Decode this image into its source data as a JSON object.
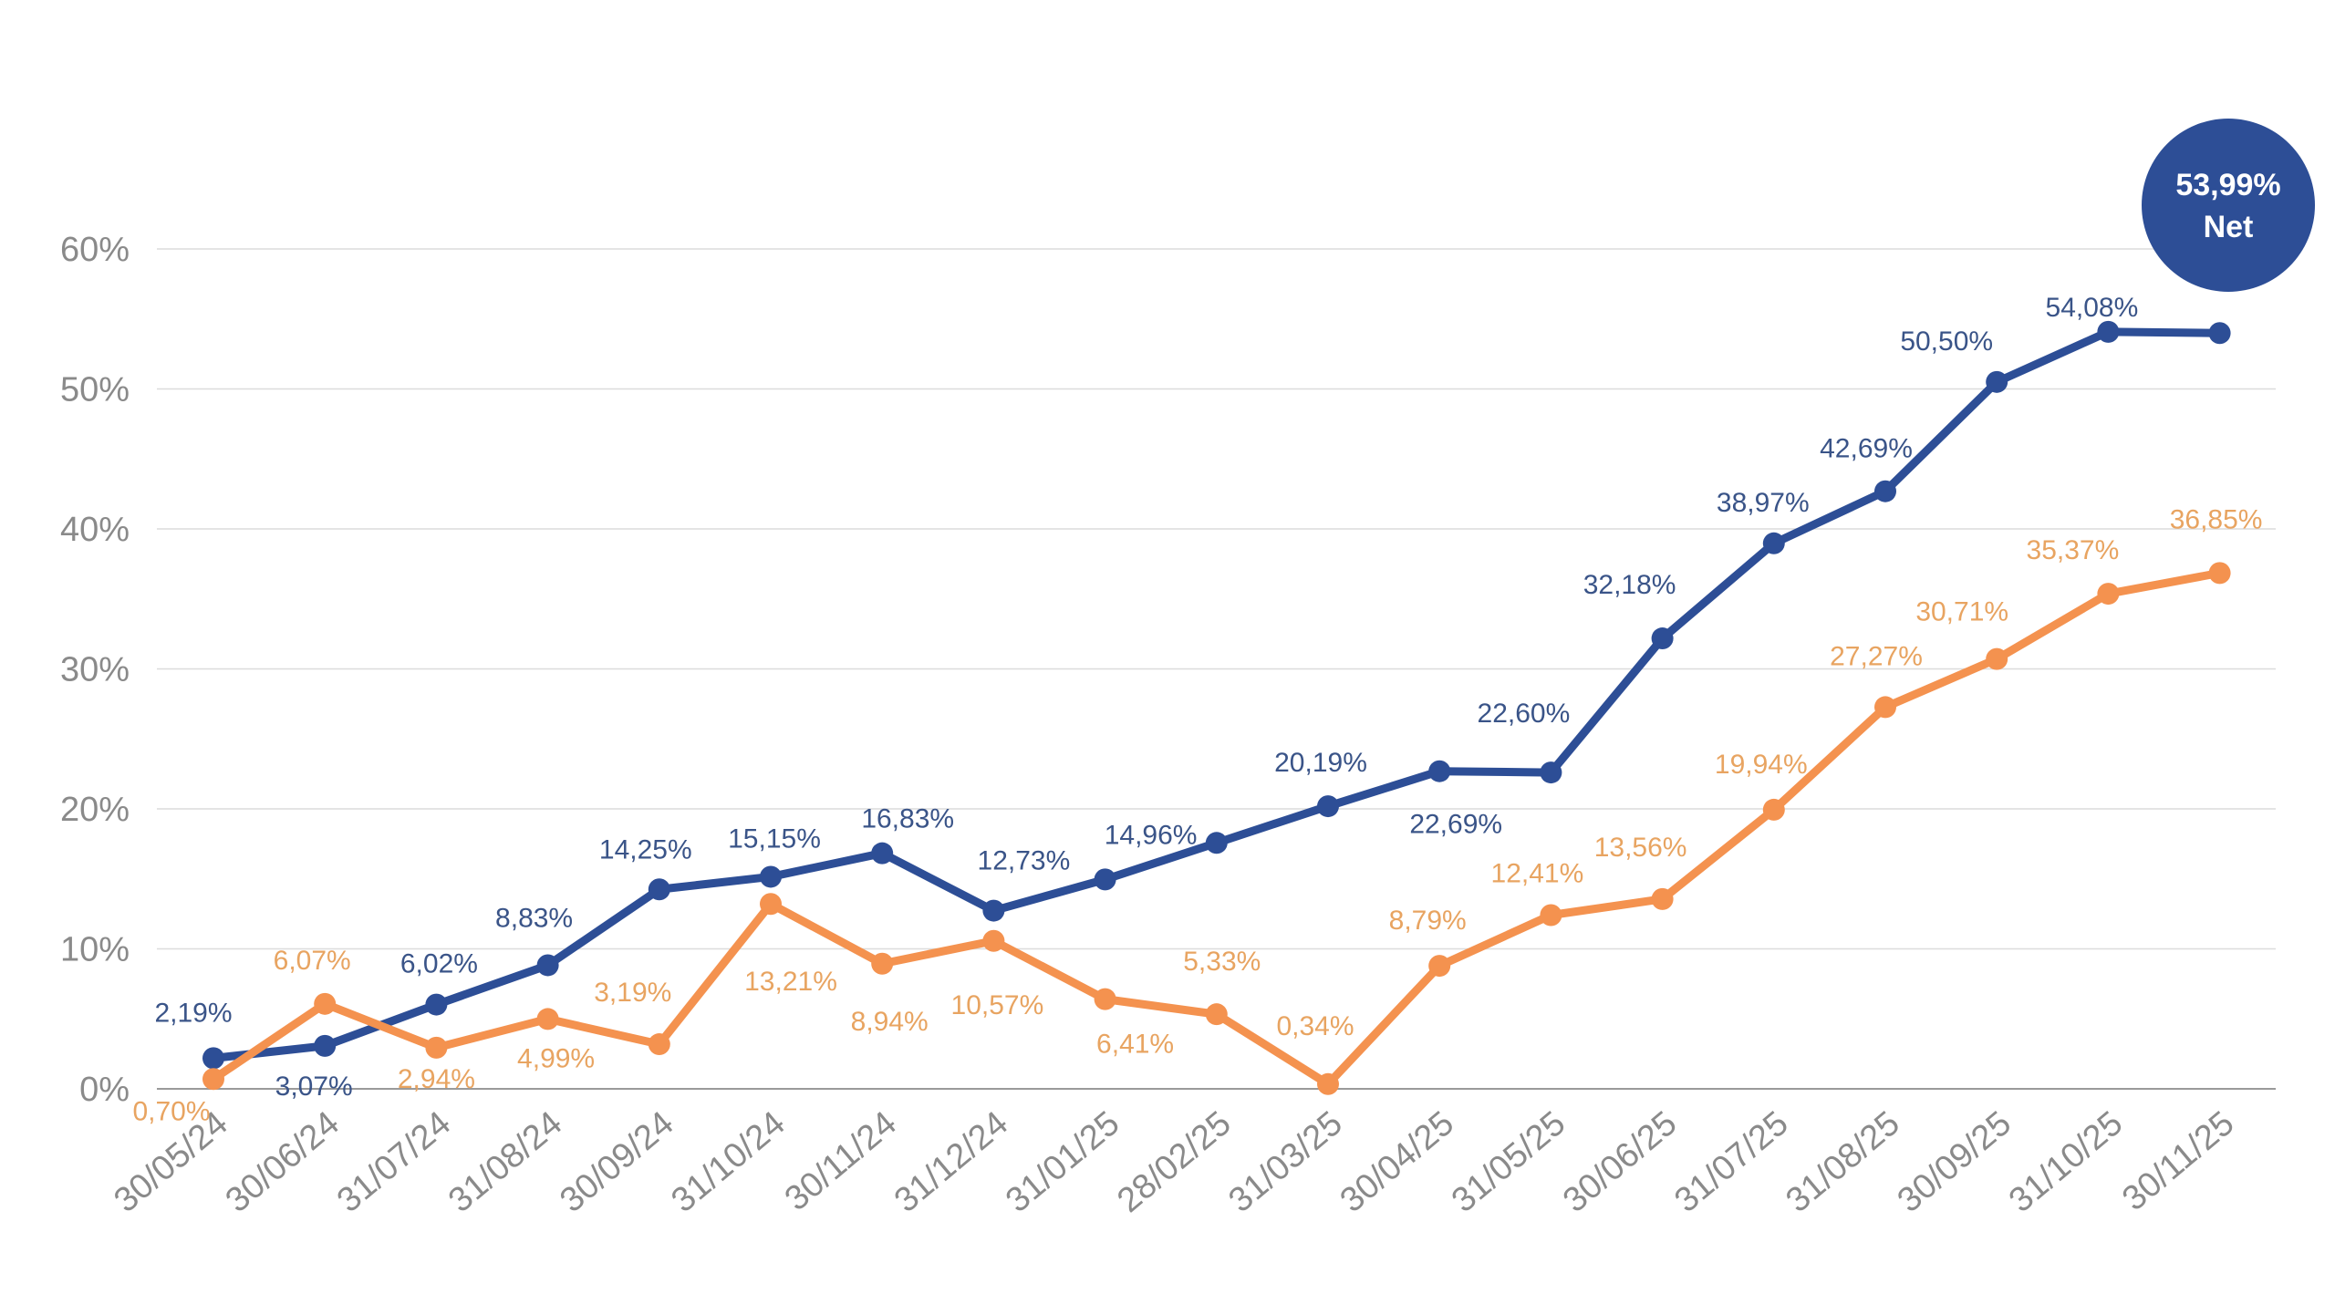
{
  "chart_data": {
    "type": "line",
    "categories": [
      "30/05/24",
      "30/06/24",
      "31/07/24",
      "31/08/24",
      "30/09/24",
      "31/10/24",
      "30/11/24",
      "31/12/24",
      "31/01/25",
      "28/02/25",
      "31/03/25",
      "30/04/25",
      "31/05/25",
      "30/06/25",
      "31/07/25",
      "31/08/25",
      "30/09/25",
      "31/10/25",
      "30/11/25"
    ],
    "ylim": [
      0,
      60
    ],
    "yticks": [
      0,
      10,
      20,
      30,
      40,
      50,
      60
    ],
    "ytick_labels": [
      "0%",
      "10%",
      "20%",
      "30%",
      "40%",
      "50%",
      "60%"
    ],
    "grid": true,
    "series": [
      {
        "color": "#2d4e96",
        "label_color": "#3a5488",
        "values": [
          2.19,
          3.07,
          6.02,
          8.83,
          14.25,
          15.15,
          16.83,
          12.73,
          14.96,
          17.57,
          20.19,
          22.69,
          22.6,
          32.18,
          38.97,
          42.69,
          50.5,
          54.08,
          53.99
        ],
        "labels": [
          "2,19%",
          "3,07%",
          "6,02%",
          "8,83%",
          "14,25%",
          "15,15%",
          "16,83%",
          "12,73%",
          "14,96%",
          "",
          "20,19%",
          "22,69%",
          "22,60%",
          "32,18%",
          "38,97%",
          "42,69%",
          "50,50%",
          "54,08%",
          ""
        ]
      },
      {
        "color": "#f4924f",
        "label_color": "#e8a461",
        "values": [
          0.7,
          6.07,
          2.94,
          4.99,
          3.19,
          13.21,
          8.94,
          10.57,
          6.41,
          5.33,
          0.34,
          8.79,
          12.41,
          13.56,
          19.94,
          27.27,
          30.71,
          35.37,
          36.85
        ],
        "labels": [
          "0,70%",
          "6,07%",
          "2,94%",
          "4,99%",
          "3,19%",
          "13,21%",
          "8,94%",
          "10,57%",
          "6,41%",
          "5,33%",
          "0,34%",
          "8,79%",
          "12,41%",
          "13,56%",
          "19,94%",
          "27,27%",
          "30,71%",
          "35,37%",
          "36,85%"
        ]
      }
    ],
    "badge": {
      "value": "53,99%",
      "label": "Net",
      "color": "#2d4e96"
    }
  }
}
